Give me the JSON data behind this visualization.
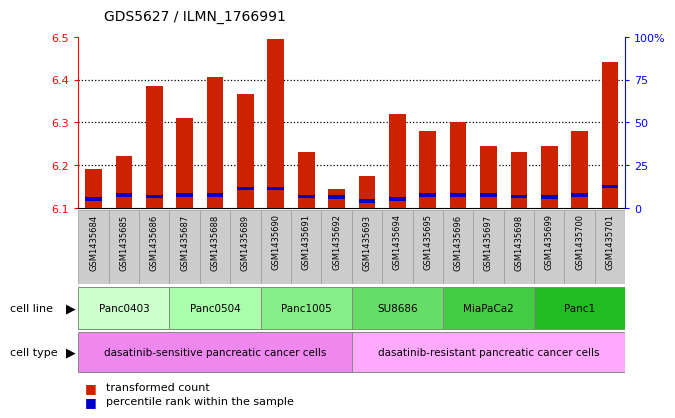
{
  "title": "GDS5627 / ILMN_1766991",
  "samples": [
    "GSM1435684",
    "GSM1435685",
    "GSM1435686",
    "GSM1435687",
    "GSM1435688",
    "GSM1435689",
    "GSM1435690",
    "GSM1435691",
    "GSM1435692",
    "GSM1435693",
    "GSM1435694",
    "GSM1435695",
    "GSM1435696",
    "GSM1435697",
    "GSM1435698",
    "GSM1435699",
    "GSM1435700",
    "GSM1435701"
  ],
  "red_values": [
    6.19,
    6.22,
    6.385,
    6.31,
    6.405,
    6.365,
    6.495,
    6.23,
    6.145,
    6.175,
    6.32,
    6.28,
    6.3,
    6.245,
    6.23,
    6.245,
    6.28,
    6.44
  ],
  "blue_values": [
    6.12,
    6.13,
    6.126,
    6.13,
    6.13,
    6.145,
    6.145,
    6.126,
    6.125,
    6.116,
    6.12,
    6.13,
    6.13,
    6.13,
    6.126,
    6.125,
    6.13,
    6.15
  ],
  "ymin": 6.1,
  "ymax": 6.5,
  "yticks_red": [
    6.1,
    6.2,
    6.3,
    6.4,
    6.5
  ],
  "yticks_blue_vals": [
    0,
    25,
    50,
    75,
    100
  ],
  "ytick_blue_labels": [
    "0",
    "25",
    "50",
    "75",
    "100%"
  ],
  "bar_color": "#cc2200",
  "blue_color": "#0000cc",
  "bar_width": 0.55,
  "blue_bar_height": 0.008,
  "cell_lines": [
    {
      "label": "Panc0403",
      "start": 0,
      "end": 3,
      "color": "#ccffcc"
    },
    {
      "label": "Panc0504",
      "start": 3,
      "end": 6,
      "color": "#aaffaa"
    },
    {
      "label": "Panc1005",
      "start": 6,
      "end": 9,
      "color": "#88ee88"
    },
    {
      "label": "SU8686",
      "start": 9,
      "end": 12,
      "color": "#66dd66"
    },
    {
      "label": "MiaPaCa2",
      "start": 12,
      "end": 15,
      "color": "#44cc44"
    },
    {
      "label": "Panc1",
      "start": 15,
      "end": 18,
      "color": "#22bb22"
    }
  ],
  "cell_types": [
    {
      "label": "dasatinib-sensitive pancreatic cancer cells",
      "start": 0,
      "end": 9,
      "color": "#ee88ee"
    },
    {
      "label": "dasatinib-resistant pancreatic cancer cells",
      "start": 9,
      "end": 18,
      "color": "#ffaaff"
    }
  ],
  "legend_items": [
    {
      "color": "#cc2200",
      "label": "transformed count"
    },
    {
      "color": "#0000cc",
      "label": "percentile rank within the sample"
    }
  ],
  "grid_lines": [
    6.2,
    6.3,
    6.4
  ],
  "xlabel_bg_color": "#cccccc",
  "xlabel_border_color": "#999999"
}
